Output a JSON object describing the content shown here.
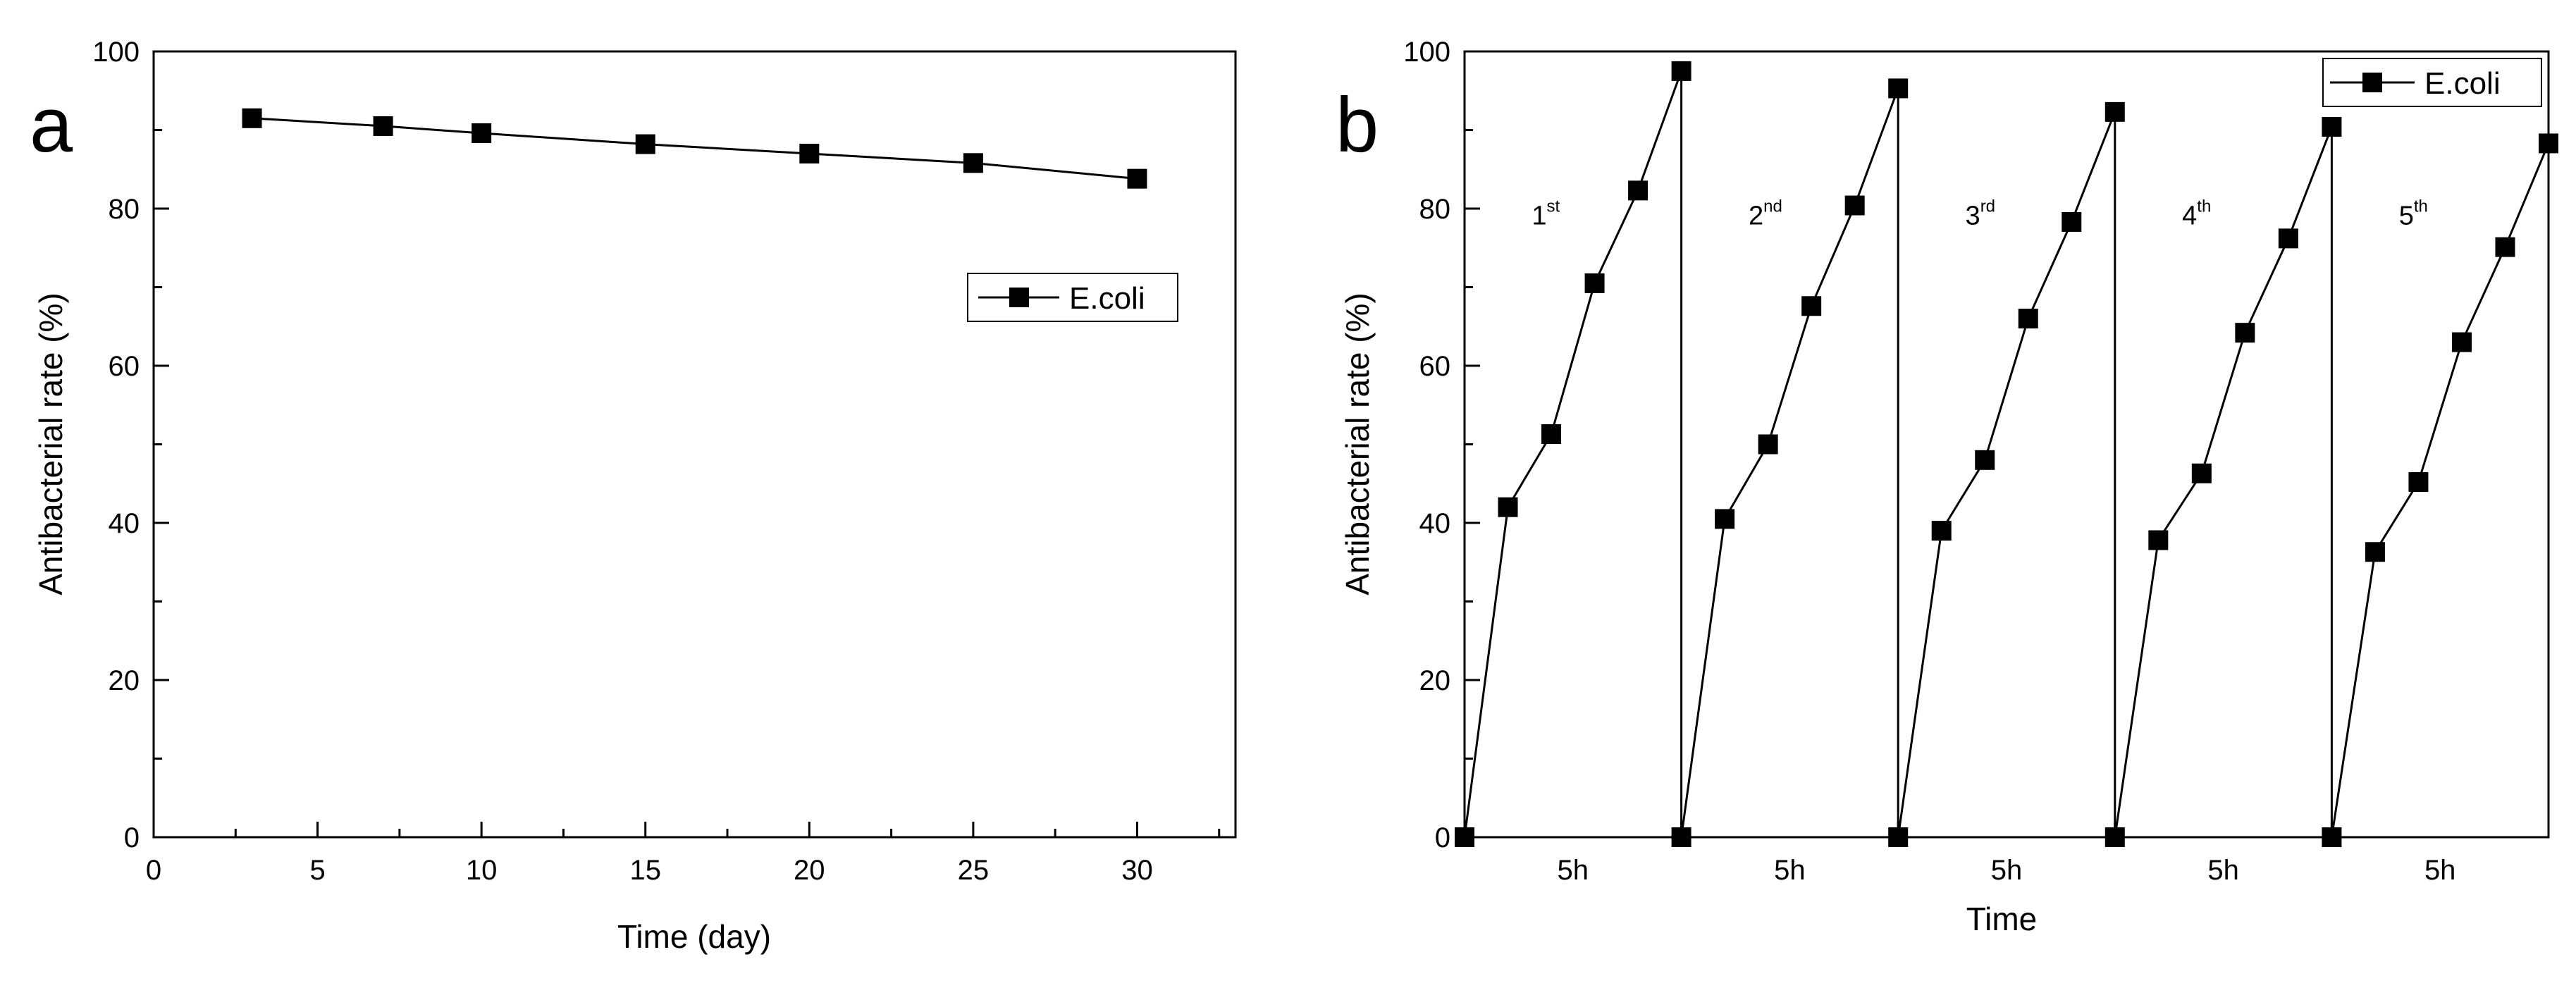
{
  "chart_data": [
    {
      "type": "line",
      "panel_label": "a",
      "xlabel": "Time (day)",
      "ylabel": "Antibacterial rate (%)",
      "xlim": [
        0,
        33
      ],
      "ylim": [
        0,
        100
      ],
      "xticks": [
        0,
        5,
        10,
        15,
        20,
        25,
        30
      ],
      "yticks": [
        0,
        20,
        40,
        60,
        80,
        100
      ],
      "legend": {
        "label": "E.coli",
        "position": "center-right"
      },
      "series": [
        {
          "name": "E.coli",
          "marker": "square",
          "x": [
            3,
            7,
            10,
            15,
            20,
            25,
            30
          ],
          "y": [
            91.5,
            90.5,
            89.6,
            88.2,
            87.0,
            85.8,
            83.8
          ]
        }
      ]
    },
    {
      "type": "line",
      "panel_label": "b",
      "xlabel": "Time",
      "ylabel": "Antibacterial rate (%)",
      "xlim": [
        0,
        25
      ],
      "ylim": [
        0,
        100
      ],
      "yticks": [
        0,
        20,
        40,
        60,
        80,
        100
      ],
      "segment_label": "5h",
      "segment_ticks": [
        5,
        10,
        15,
        20
      ],
      "legend": {
        "label": "E.coli",
        "position": "top-right"
      },
      "cycles": [
        {
          "base": "1",
          "sup": "st",
          "x": [
            0,
            1,
            2,
            3,
            4,
            5
          ],
          "y": [
            0,
            42.0,
            51.3,
            70.5,
            82.3,
            97.5
          ]
        },
        {
          "base": "2",
          "sup": "nd",
          "x": [
            5,
            6,
            7,
            8,
            9,
            10
          ],
          "y": [
            0,
            40.5,
            50.0,
            67.6,
            80.4,
            95.3
          ]
        },
        {
          "base": "3",
          "sup": "rd",
          "x": [
            10,
            11,
            12,
            13,
            14,
            15
          ],
          "y": [
            0,
            39.0,
            48.0,
            66.0,
            78.3,
            92.3
          ]
        },
        {
          "base": "4",
          "sup": "th",
          "x": [
            15,
            16,
            17,
            18,
            19,
            20
          ],
          "y": [
            0,
            37.8,
            46.3,
            64.2,
            76.2,
            90.4
          ]
        },
        {
          "base": "5",
          "sup": "th",
          "x": [
            20,
            21,
            22,
            23,
            24,
            25
          ],
          "y": [
            0,
            36.3,
            45.2,
            63.0,
            75.1,
            88.3
          ]
        }
      ]
    }
  ]
}
